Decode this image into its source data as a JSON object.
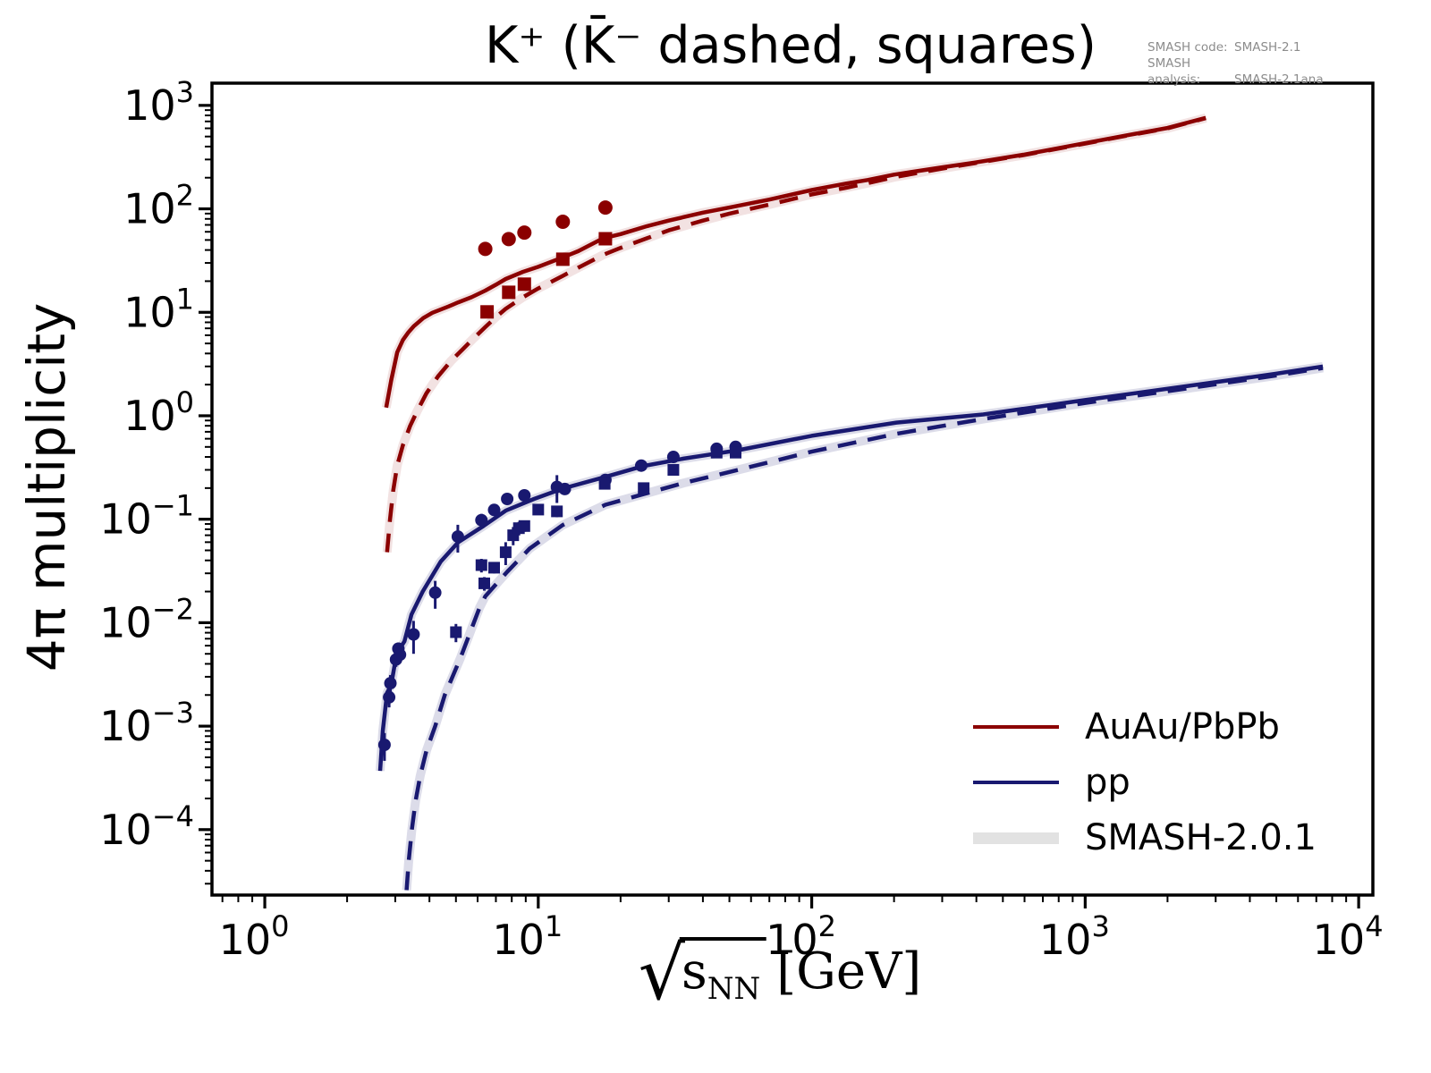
{
  "chart_data": {
    "type": "line",
    "title": "K⁺ (K̄⁻ dashed, squares)",
    "ylabel": "4π multiplicity",
    "xlabel": {
      "radical": "√",
      "radicand": "s",
      "subscript": "NN",
      "unit": "[GeV]"
    },
    "xscale": "log",
    "yscale": "log",
    "xlim": [
      0.641,
      11270
    ],
    "ylim": [
      2.33e-05,
      1640
    ],
    "x_tick_exponents": [
      0,
      1,
      2,
      3,
      4
    ],
    "y_tick_exponents": [
      3,
      2,
      1,
      0,
      -1,
      -2,
      -3,
      -4
    ],
    "grid": false,
    "annotation": {
      "rows": [
        {
          "label": "SMASH code:",
          "value": "SMASH-2.1"
        },
        {
          "label": "SMASH analysis:",
          "value": "SMASH-2.1ana"
        }
      ]
    },
    "legend": {
      "position": "lower right",
      "frame": false,
      "items": [
        {
          "label": "AuAu/PbPb",
          "color": "#8b0000",
          "line_width": 4.5
        },
        {
          "label": "pp",
          "color": "#191970",
          "line_width": 4.5
        },
        {
          "label": "SMASH-2.0.1",
          "color": "#e2e2e2",
          "line_width": 13
        }
      ]
    },
    "series": [
      {
        "name": "AuAu/PbPb K+ (solid)",
        "style": "solid",
        "color": "#8b0000",
        "band_color": "#f2e2e2",
        "points": [
          [
            2.78,
            1.2
          ],
          [
            2.9,
            2.2
          ],
          [
            3.05,
            4.1
          ],
          [
            3.2,
            5.4
          ],
          [
            3.35,
            6.4
          ],
          [
            3.5,
            7.3
          ],
          [
            3.8,
            8.8
          ],
          [
            4.1,
            9.9
          ],
          [
            4.7,
            11.4
          ],
          [
            5.1,
            12.5
          ],
          [
            5.7,
            14
          ],
          [
            6.4,
            16.2
          ],
          [
            7,
            18.5
          ],
          [
            7.6,
            21
          ],
          [
            8.8,
            24.6
          ],
          [
            10,
            27.5
          ],
          [
            12.3,
            34
          ],
          [
            14,
            39
          ],
          [
            17.3,
            52
          ],
          [
            20,
            57
          ],
          [
            25,
            68
          ],
          [
            30,
            77
          ],
          [
            40,
            92
          ],
          [
            50,
            103
          ],
          [
            70,
            123
          ],
          [
            100,
            152
          ],
          [
            134,
            176
          ],
          [
            160,
            190
          ],
          [
            200,
            214
          ],
          [
            300,
            252
          ],
          [
            394,
            280
          ],
          [
            600,
            335
          ],
          [
            900,
            410
          ],
          [
            1400,
            510
          ],
          [
            2000,
            605
          ],
          [
            2760,
            757
          ]
        ]
      },
      {
        "name": "AuAu/PbPb K- (dashed)",
        "style": "dashed",
        "color": "#8b0000",
        "band_color": "#f2e2e2",
        "points": [
          [
            2.8,
            0.048
          ],
          [
            2.87,
            0.1
          ],
          [
            2.95,
            0.19
          ],
          [
            3.05,
            0.33
          ],
          [
            3.2,
            0.52
          ],
          [
            3.4,
            0.8
          ],
          [
            3.6,
            1.1
          ],
          [
            3.9,
            1.65
          ],
          [
            4.3,
            2.4
          ],
          [
            4.8,
            3.4
          ],
          [
            5.3,
            4.4
          ],
          [
            5.8,
            5.6
          ],
          [
            6.4,
            7.2
          ],
          [
            7,
            9
          ],
          [
            7.6,
            10.8
          ],
          [
            8.8,
            14
          ],
          [
            10,
            17
          ],
          [
            12.3,
            22.5
          ],
          [
            14,
            27
          ],
          [
            17.3,
            36
          ],
          [
            20,
            42
          ],
          [
            25,
            52
          ],
          [
            30,
            62
          ],
          [
            40,
            77
          ],
          [
            50,
            90
          ],
          [
            70,
            110
          ],
          [
            100,
            138
          ],
          [
            134,
            160
          ],
          [
            160,
            177
          ],
          [
            200,
            202
          ],
          [
            300,
            245
          ],
          [
            394,
            276
          ],
          [
            600,
            332
          ],
          [
            900,
            406
          ],
          [
            1400,
            506
          ],
          [
            2000,
            600
          ],
          [
            2760,
            753
          ]
        ]
      },
      {
        "name": "pp K+ (solid)",
        "style": "solid",
        "color": "#191970",
        "band_color": "#dcdce9",
        "points": [
          [
            2.64,
            0.00037
          ],
          [
            2.7,
            0.0009
          ],
          [
            2.8,
            0.0021
          ],
          [
            2.9,
            0.0025
          ],
          [
            3.0,
            0.0042
          ],
          [
            3.1,
            0.0055
          ],
          [
            3.24,
            0.0066
          ],
          [
            3.44,
            0.012
          ],
          [
            3.78,
            0.02
          ],
          [
            4.4,
            0.039
          ],
          [
            5.1,
            0.06
          ],
          [
            6.3,
            0.086
          ],
          [
            7.6,
            0.121
          ],
          [
            9.65,
            0.157
          ],
          [
            12.3,
            0.198
          ],
          [
            17.6,
            0.257
          ],
          [
            24.3,
            0.327
          ],
          [
            34,
            0.385
          ],
          [
            53.8,
            0.465
          ],
          [
            100,
            0.64
          ],
          [
            204,
            0.86
          ],
          [
            424,
            1.03
          ],
          [
            1000,
            1.42
          ],
          [
            2760,
            2.05
          ],
          [
            5000,
            2.55
          ],
          [
            7400,
            3.0
          ]
        ]
      },
      {
        "name": "pp K- (dashed)",
        "style": "dashed",
        "color": "#191970",
        "band_color": "#dcdce9",
        "points": [
          [
            3.3,
            2.6e-05
          ],
          [
            3.36,
            5e-05
          ],
          [
            3.45,
            0.0001
          ],
          [
            3.56,
            0.00019
          ],
          [
            3.7,
            0.00033
          ],
          [
            3.9,
            0.00058
          ],
          [
            4.2,
            0.001
          ],
          [
            4.55,
            0.002
          ],
          [
            5.2,
            0.0046
          ],
          [
            6.1,
            0.014
          ],
          [
            6.4,
            0.018
          ],
          [
            7.7,
            0.031
          ],
          [
            9.3,
            0.052
          ],
          [
            12.3,
            0.088
          ],
          [
            17.6,
            0.138
          ],
          [
            24.3,
            0.175
          ],
          [
            34,
            0.224
          ],
          [
            53.8,
            0.3
          ],
          [
            100,
            0.45
          ],
          [
            204,
            0.67
          ],
          [
            424,
            0.93
          ],
          [
            1000,
            1.33
          ],
          [
            2760,
            1.95
          ],
          [
            5000,
            2.45
          ],
          [
            7400,
            2.9
          ]
        ]
      }
    ],
    "scatter": [
      {
        "name": "AuAu/PbPb K+ data",
        "marker": "circle",
        "color": "#8b0000",
        "size": 8,
        "points": [
          [
            6.4,
            41
          ],
          [
            7.8,
            51
          ],
          [
            8.9,
            59
          ],
          [
            12.3,
            75
          ],
          [
            17.6,
            103
          ]
        ]
      },
      {
        "name": "AuAu/PbPb K- data",
        "marker": "square",
        "color": "#8b0000",
        "size": 7.5,
        "points": [
          [
            6.5,
            10.1
          ],
          [
            7.8,
            15.6
          ],
          [
            8.9,
            18.7
          ],
          [
            12.3,
            32.6
          ],
          [
            17.6,
            51.4
          ]
        ]
      },
      {
        "name": "pp K+ data",
        "marker": "circle",
        "color": "#191970",
        "size": 7,
        "points": [
          [
            2.74,
            0.00066,
            0.3
          ],
          [
            2.85,
            0.0019,
            0.2
          ],
          [
            2.88,
            0.0026,
            0.2
          ],
          [
            3.02,
            0.0044,
            0.15
          ],
          [
            3.08,
            0.0056,
            0.15
          ],
          [
            3.12,
            0.0049,
            0.15
          ],
          [
            3.5,
            0.0077,
            0.35
          ],
          [
            4.2,
            0.0195,
            0.3
          ],
          [
            5.08,
            0.068,
            0.3
          ],
          [
            6.2,
            0.098,
            0.15
          ],
          [
            6.9,
            0.123,
            0.12
          ],
          [
            7.7,
            0.157,
            0.1
          ],
          [
            8.9,
            0.17,
            0.12
          ],
          [
            11.7,
            0.205,
            0.3
          ],
          [
            12.5,
            0.196,
            0.1
          ],
          [
            17.6,
            0.24,
            0.1
          ],
          [
            23.8,
            0.33,
            0.12
          ],
          [
            31.2,
            0.4,
            0.12
          ],
          [
            44.9,
            0.48,
            0.07
          ],
          [
            52.7,
            0.5,
            0.07
          ]
        ]
      },
      {
        "name": "pp K- data",
        "marker": "square",
        "color": "#191970",
        "size": 6.5,
        "points": [
          [
            5.0,
            0.0081,
            0.2
          ],
          [
            6.2,
            0.036,
            0.15
          ],
          [
            6.35,
            0.024,
            0.15
          ],
          [
            6.9,
            0.034,
            0.12
          ],
          [
            7.6,
            0.048,
            0.25
          ],
          [
            8.1,
            0.07,
            0.2
          ],
          [
            8.5,
            0.082,
            0.15
          ],
          [
            8.9,
            0.086,
            0.12
          ],
          [
            10,
            0.124,
            0.1
          ],
          [
            11.7,
            0.119,
            0.12
          ],
          [
            17.5,
            0.22,
            0.1
          ],
          [
            24.3,
            0.2,
            0.1
          ],
          [
            31.2,
            0.3,
            0.1
          ],
          [
            44.9,
            0.44,
            0.07
          ],
          [
            52.7,
            0.44,
            0.07
          ]
        ]
      }
    ]
  }
}
